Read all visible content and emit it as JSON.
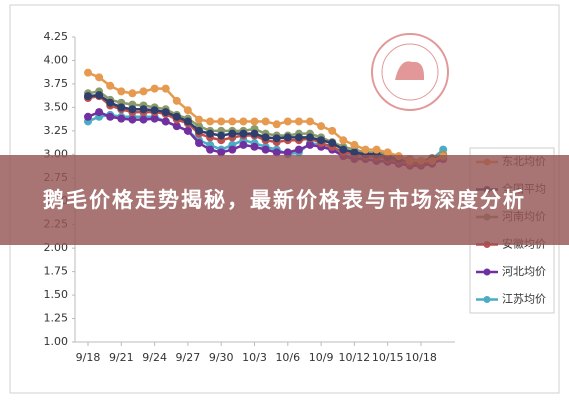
{
  "chart_data": {
    "type": "line",
    "banner": "鹅毛价格走势揭秘，最新价格表与市场深度分析",
    "categories": [
      "9/18",
      null,
      null,
      "9/21",
      null,
      null,
      "9/24",
      null,
      null,
      "9/27",
      null,
      null,
      "9/30",
      null,
      null,
      "10/3",
      null,
      null,
      "10/6",
      null,
      null,
      "10/9",
      null,
      null,
      "10/12",
      null,
      null,
      "10/15",
      null,
      null,
      "10/18",
      null,
      null
    ],
    "ylim": [
      1.0,
      4.25
    ],
    "yticks": [
      {
        "value": 1.0,
        "label": "1.00"
      },
      {
        "value": 1.25,
        "label": "1.25"
      },
      {
        "value": 1.5,
        "label": "1.50"
      },
      {
        "value": 1.75,
        "label": "1.75"
      },
      {
        "value": 2.0,
        "label": "2.00"
      },
      {
        "value": 2.25,
        "label": "2.25"
      },
      {
        "value": 2.5,
        "label": "2.50"
      },
      {
        "value": 2.75,
        "label": "2.75"
      },
      {
        "value": 3.0,
        "label": "3.00"
      },
      {
        "value": 3.25,
        "label": "3.25"
      },
      {
        "value": 3.5,
        "label": "3.50"
      },
      {
        "value": 3.75,
        "label": "3.75"
      },
      {
        "value": 4.0,
        "label": "4.00"
      },
      {
        "value": 4.25,
        "label": "4.25"
      }
    ],
    "grid": false,
    "legend": "right",
    "series": [
      {
        "name": "江苏均价",
        "color": "#4bacc6",
        "values": [
          3.35,
          3.4,
          3.42,
          3.4,
          3.4,
          3.4,
          3.4,
          3.35,
          3.3,
          3.25,
          3.15,
          3.1,
          3.05,
          3.1,
          3.15,
          3.12,
          3.08,
          3.05,
          3.0,
          3.02,
          3.12,
          3.1,
          3.05,
          3.0,
          2.97,
          2.95,
          2.93,
          2.93,
          2.9,
          2.9,
          2.88,
          2.95,
          3.05
        ]
      },
      {
        "name": "河北均价",
        "color": "#7030a0",
        "values": [
          3.4,
          3.45,
          3.4,
          3.38,
          3.37,
          3.37,
          3.38,
          3.35,
          3.3,
          3.25,
          3.12,
          3.05,
          3.02,
          3.05,
          3.1,
          3.08,
          3.05,
          3.02,
          3.02,
          3.05,
          3.1,
          3.08,
          3.05,
          2.98,
          2.95,
          2.95,
          2.93,
          2.92,
          2.9,
          2.88,
          2.88,
          2.9,
          2.95
        ]
      },
      {
        "name": "安徽均价",
        "color": "#c0504d",
        "values": [
          3.6,
          3.62,
          3.52,
          3.48,
          3.45,
          3.45,
          3.45,
          3.43,
          3.37,
          3.33,
          3.22,
          3.18,
          3.15,
          3.18,
          3.2,
          3.2,
          3.15,
          3.13,
          3.15,
          3.15,
          3.17,
          3.12,
          3.08,
          3.02,
          3.0,
          2.98,
          2.97,
          2.95,
          2.93,
          2.9,
          2.9,
          2.93,
          2.97
        ]
      },
      {
        "name": "河南均价",
        "color": "#8a9a6a",
        "values": [
          3.65,
          3.67,
          3.58,
          3.55,
          3.53,
          3.52,
          3.5,
          3.48,
          3.42,
          3.38,
          3.3,
          3.25,
          3.25,
          3.25,
          3.25,
          3.27,
          3.22,
          3.2,
          3.2,
          3.22,
          3.22,
          3.18,
          3.13,
          3.08,
          3.05,
          3.02,
          3.02,
          3.0,
          2.97,
          2.95,
          2.93,
          2.96,
          3.0
        ]
      },
      {
        "name": "全国平均",
        "color": "#2e3f6e",
        "values": [
          3.62,
          3.63,
          3.55,
          3.5,
          3.48,
          3.48,
          3.47,
          3.45,
          3.4,
          3.35,
          3.25,
          3.22,
          3.2,
          3.22,
          3.22,
          3.22,
          3.18,
          3.17,
          3.18,
          3.18,
          3.18,
          3.15,
          3.12,
          3.05,
          3.02,
          3.0,
          3.0,
          2.97,
          2.95,
          2.93,
          2.92,
          2.95,
          2.98
        ]
      },
      {
        "name": "东北均价",
        "color": "#e59a4f",
        "values": [
          3.87,
          3.82,
          3.73,
          3.67,
          3.65,
          3.67,
          3.7,
          3.7,
          3.57,
          3.47,
          3.37,
          3.35,
          3.35,
          3.35,
          3.35,
          3.35,
          3.35,
          3.32,
          3.35,
          3.35,
          3.35,
          3.3,
          3.25,
          3.15,
          3.1,
          3.05,
          3.05,
          3.02,
          2.98,
          2.93,
          2.93,
          2.93,
          2.98
        ]
      }
    ]
  }
}
